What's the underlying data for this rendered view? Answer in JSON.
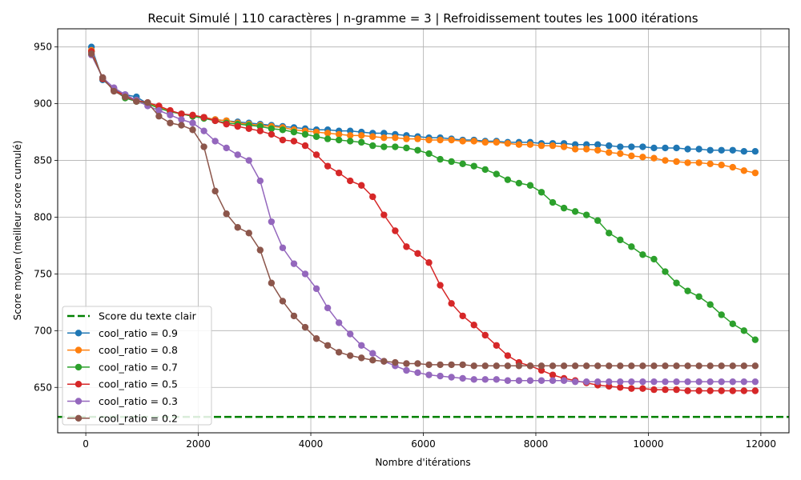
{
  "chart_data": {
    "type": "line",
    "title": "Recuit Simulé | 110 caractères | n-gramme = 3 | Refroidissement toutes les 1000 itérations",
    "xlabel": "Nombre d'itérations",
    "ylabel": "Score moyen (meilleur score cumulé)",
    "xlim": [
      -500,
      12500
    ],
    "ylim": [
      610,
      966
    ],
    "xticks": [
      0,
      2000,
      4000,
      6000,
      8000,
      10000,
      12000
    ],
    "yticks": [
      650,
      700,
      750,
      800,
      850,
      900,
      950
    ],
    "grid": true,
    "legend_position": "lower-left",
    "x": [
      100,
      300,
      500,
      700,
      900,
      1100,
      1300,
      1500,
      1700,
      1900,
      2100,
      2300,
      2500,
      2700,
      2900,
      3100,
      3300,
      3500,
      3700,
      3900,
      4100,
      4300,
      4500,
      4700,
      4900,
      5100,
      5300,
      5500,
      5700,
      5900,
      6100,
      6300,
      6500,
      6700,
      6900,
      7100,
      7300,
      7500,
      7700,
      7900,
      8100,
      8300,
      8500,
      8700,
      8900,
      9100,
      9300,
      9500,
      9700,
      9900,
      10100,
      10300,
      10500,
      10700,
      10900,
      11100,
      11300,
      11500,
      11700,
      11900
    ],
    "reference_line": {
      "name": "Score du texte clair",
      "y": 624,
      "color": "#008000"
    },
    "series": [
      {
        "name": "cool_ratio = 0.9",
        "color": "#1f77b4",
        "values": [
          950,
          921,
          913,
          908,
          906,
          900,
          897,
          893,
          891,
          889,
          888,
          886,
          885,
          884,
          883,
          882,
          881,
          880,
          879,
          878,
          877,
          877,
          876,
          876,
          875,
          874,
          874,
          873,
          872,
          871,
          870,
          870,
          869,
          868,
          868,
          867,
          867,
          866,
          866,
          866,
          865,
          865,
          865,
          864,
          864,
          864,
          863,
          862,
          862,
          862,
          861,
          861,
          861,
          860,
          860,
          859,
          859,
          859,
          858,
          858
        ]
      },
      {
        "name": "cool_ratio = 0.8",
        "color": "#ff7f0e",
        "values": [
          947,
          922,
          912,
          907,
          903,
          900,
          897,
          893,
          891,
          889,
          888,
          886,
          885,
          883,
          882,
          881,
          880,
          879,
          877,
          876,
          875,
          874,
          873,
          872,
          872,
          871,
          870,
          870,
          869,
          869,
          868,
          868,
          868,
          867,
          867,
          866,
          866,
          865,
          864,
          864,
          863,
          863,
          862,
          860,
          860,
          859,
          857,
          856,
          854,
          853,
          852,
          850,
          849,
          848,
          848,
          847,
          846,
          844,
          841,
          839
        ]
      },
      {
        "name": "cool_ratio = 0.7",
        "color": "#2ca02c",
        "values": [
          946,
          922,
          912,
          905,
          902,
          900,
          896,
          893,
          891,
          889,
          887,
          885,
          883,
          882,
          881,
          880,
          878,
          877,
          875,
          873,
          871,
          869,
          868,
          867,
          866,
          863,
          862,
          862,
          861,
          859,
          856,
          851,
          849,
          847,
          845,
          842,
          838,
          833,
          830,
          828,
          822,
          813,
          808,
          805,
          802,
          797,
          786,
          780,
          774,
          767,
          763,
          752,
          742,
          735,
          730,
          723,
          714,
          706,
          700,
          692
        ]
      },
      {
        "name": "cool_ratio = 0.5",
        "color": "#d62728",
        "values": [
          946,
          922,
          912,
          907,
          903,
          901,
          898,
          894,
          891,
          890,
          888,
          885,
          882,
          880,
          878,
          876,
          873,
          868,
          867,
          863,
          855,
          845,
          839,
          832,
          828,
          818,
          802,
          788,
          774,
          768,
          760,
          740,
          724,
          713,
          705,
          696,
          687,
          678,
          672,
          669,
          665,
          661,
          658,
          656,
          654,
          652,
          651,
          650,
          649,
          649,
          648,
          648,
          648,
          647,
          647,
          647,
          647,
          647,
          647,
          647
        ]
      },
      {
        "name": "cool_ratio = 0.3",
        "color": "#9467bd",
        "values": [
          943,
          923,
          914,
          908,
          903,
          898,
          894,
          890,
          886,
          883,
          876,
          867,
          861,
          855,
          850,
          832,
          796,
          773,
          759,
          750,
          737,
          720,
          707,
          697,
          687,
          680,
          673,
          669,
          665,
          663,
          661,
          660,
          659,
          658,
          657,
          657,
          657,
          656,
          656,
          656,
          656,
          656,
          656,
          655,
          655,
          655,
          655,
          655,
          655,
          655,
          655,
          655,
          655,
          655,
          655,
          655,
          655,
          655,
          655,
          655
        ]
      },
      {
        "name": "cool_ratio = 0.2",
        "color": "#8c564b",
        "values": [
          944,
          923,
          911,
          906,
          902,
          901,
          889,
          883,
          881,
          877,
          862,
          823,
          803,
          791,
          786,
          771,
          742,
          726,
          713,
          703,
          693,
          687,
          681,
          678,
          676,
          674,
          673,
          672,
          671,
          671,
          670,
          670,
          670,
          670,
          669,
          669,
          669,
          669,
          669,
          669,
          669,
          669,
          669,
          669,
          669,
          669,
          669,
          669,
          669,
          669,
          669,
          669,
          669,
          669,
          669,
          669,
          669,
          669,
          669,
          669
        ]
      }
    ]
  }
}
